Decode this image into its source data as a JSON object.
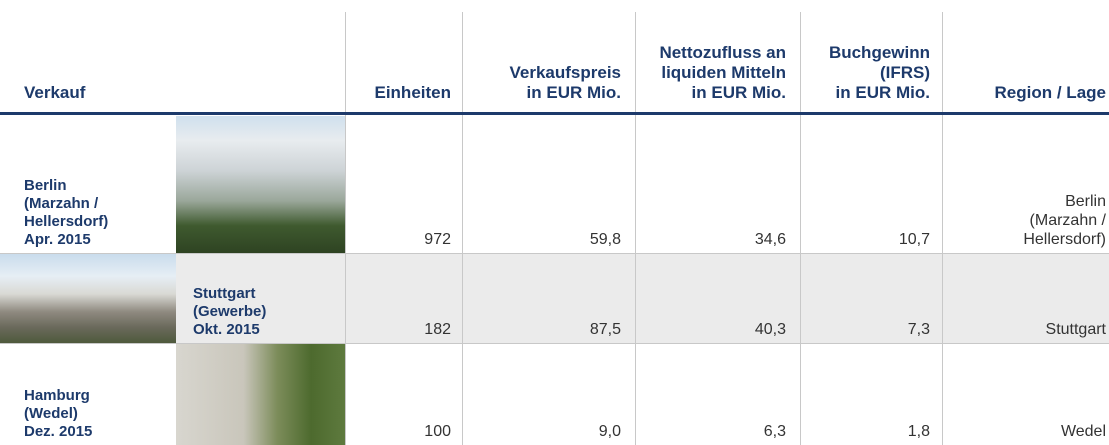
{
  "header": {
    "columns": [
      {
        "lines": [
          "Verkauf"
        ]
      },
      {
        "lines": [
          "Einheiten"
        ]
      },
      {
        "lines": [
          "Verkaufspreis",
          "in EUR Mio."
        ]
      },
      {
        "lines": [
          "Nettozufluss an",
          "liquiden Mitteln",
          "in EUR Mio."
        ]
      },
      {
        "lines": [
          "Buchgewinn",
          "(IFRS)",
          "in EUR Mio."
        ]
      },
      {
        "lines": [
          "Region / Lage"
        ]
      }
    ]
  },
  "rows": [
    {
      "sale": [
        "Berlin",
        "(Marzahn /",
        "Hellersdorf)",
        "Apr. 2015"
      ],
      "units": "972",
      "price": "59,8",
      "netflow": "34,6",
      "gain": "10,7",
      "region": [
        "Berlin",
        "(Marzahn /",
        "Hellersdorf)"
      ]
    },
    {
      "sale": [
        "Stuttgart",
        "(Gewerbe)",
        "Okt. 2015"
      ],
      "units": "182",
      "price": "87,5",
      "netflow": "40,3",
      "gain": "7,3",
      "region": [
        "Stuttgart"
      ]
    },
    {
      "sale": [
        "Hamburg",
        "(Wedel)",
        "Dez. 2015"
      ],
      "units": "100",
      "price": "9,0",
      "netflow": "6,3",
      "gain": "1,8",
      "region": [
        "Wedel"
      ]
    }
  ]
}
